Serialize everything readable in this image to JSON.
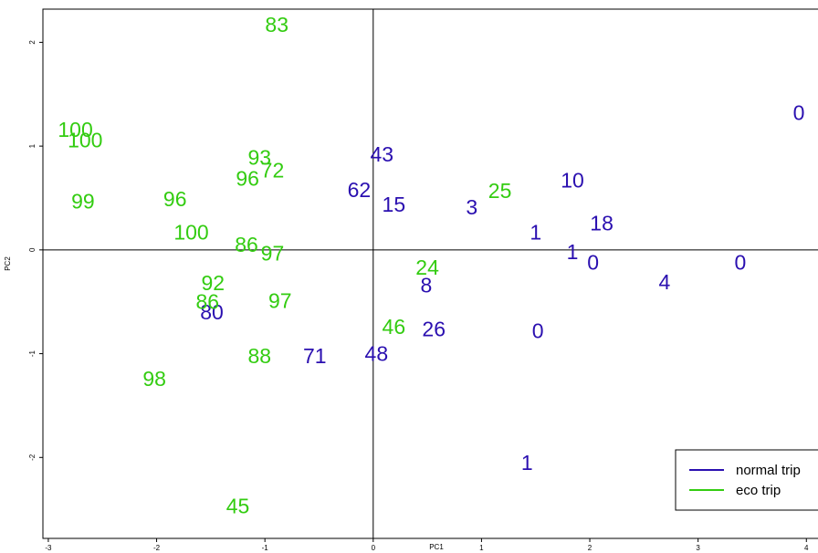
{
  "chart_data": {
    "type": "scatter",
    "title": "",
    "xlabel": "PC1",
    "ylabel": "PC2",
    "xlim": [
      -3.05,
      4.2
    ],
    "ylim": [
      -2.78,
      2.32
    ],
    "x_ticks": [
      -3,
      -2,
      -1,
      0,
      1,
      2,
      3,
      4
    ],
    "y_ticks": [
      -2,
      -1,
      0,
      1,
      2
    ],
    "reference_lines": {
      "x": 0,
      "y": 0
    },
    "grid": false,
    "legend_position": "bottom-right",
    "series": [
      {
        "name": "normal trip",
        "color": "#2a0fb0",
        "points": [
          {
            "x": 3.93,
            "y": 1.32,
            "label": "0"
          },
          {
            "x": 0.08,
            "y": 0.92,
            "label": "43"
          },
          {
            "x": -0.13,
            "y": 0.58,
            "label": "62"
          },
          {
            "x": 0.19,
            "y": 0.44,
            "label": "15"
          },
          {
            "x": 0.91,
            "y": 0.41,
            "label": "3"
          },
          {
            "x": 1.84,
            "y": 0.67,
            "label": "10"
          },
          {
            "x": 2.11,
            "y": 0.26,
            "label": "18"
          },
          {
            "x": 1.5,
            "y": 0.17,
            "label": "1"
          },
          {
            "x": 1.84,
            "y": -0.02,
            "label": "1"
          },
          {
            "x": 2.03,
            "y": -0.12,
            "label": "0"
          },
          {
            "x": 3.39,
            "y": -0.12,
            "label": "0"
          },
          {
            "x": 2.69,
            "y": -0.31,
            "label": "4"
          },
          {
            "x": 0.49,
            "y": -0.34,
            "label": "8"
          },
          {
            "x": 0.56,
            "y": -0.76,
            "label": "26"
          },
          {
            "x": 1.52,
            "y": -0.78,
            "label": "0"
          },
          {
            "x": 0.03,
            "y": -1.0,
            "label": "48"
          },
          {
            "x": -0.54,
            "y": -1.02,
            "label": "71"
          },
          {
            "x": -1.49,
            "y": -0.6,
            "label": "80"
          },
          {
            "x": 1.42,
            "y": -2.05,
            "label": "1"
          }
        ]
      },
      {
        "name": "eco trip",
        "color": "#33cc11",
        "points": [
          {
            "x": -0.89,
            "y": 2.17,
            "label": "83"
          },
          {
            "x": -2.75,
            "y": 1.16,
            "label": "100"
          },
          {
            "x": -2.66,
            "y": 1.06,
            "label": "100"
          },
          {
            "x": -1.05,
            "y": 0.89,
            "label": "93"
          },
          {
            "x": -0.93,
            "y": 0.77,
            "label": "72"
          },
          {
            "x": -1.16,
            "y": 0.69,
            "label": "96"
          },
          {
            "x": -2.68,
            "y": 0.47,
            "label": "99"
          },
          {
            "x": -1.83,
            "y": 0.49,
            "label": "96"
          },
          {
            "x": 1.17,
            "y": 0.57,
            "label": "25"
          },
          {
            "x": -1.68,
            "y": 0.17,
            "label": "100"
          },
          {
            "x": -1.17,
            "y": 0.05,
            "label": "86"
          },
          {
            "x": -0.93,
            "y": -0.03,
            "label": "97"
          },
          {
            "x": 0.5,
            "y": -0.17,
            "label": "24"
          },
          {
            "x": -1.48,
            "y": -0.32,
            "label": "92"
          },
          {
            "x": -1.53,
            "y": -0.5,
            "label": "86"
          },
          {
            "x": -0.86,
            "y": -0.49,
            "label": "97"
          },
          {
            "x": 0.19,
            "y": -0.74,
            "label": "46"
          },
          {
            "x": -1.05,
            "y": -1.02,
            "label": "88"
          },
          {
            "x": -2.02,
            "y": -1.24,
            "label": "98"
          },
          {
            "x": -1.25,
            "y": -2.47,
            "label": "45"
          }
        ]
      }
    ]
  }
}
